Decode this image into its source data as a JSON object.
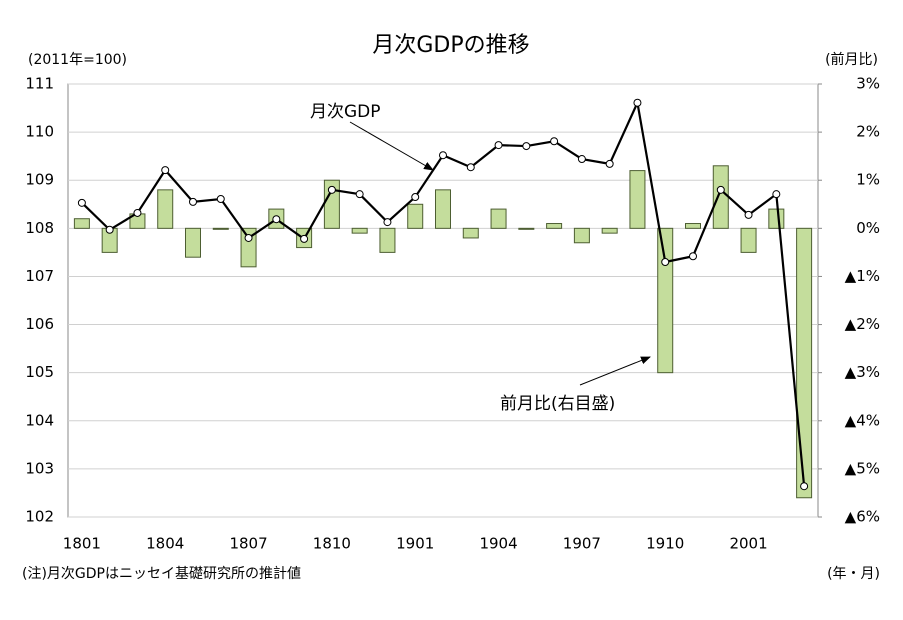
{
  "chart_data": {
    "type": "combo",
    "title": "月次GDPの推移",
    "y_label": "(2011年=100)",
    "y2_label": "(前月比)",
    "x_label": "(年・月)",
    "note": "(注)月次GDPはニッセイ基礎研究所の推計値",
    "categories": [
      "1801",
      null,
      null,
      "1804",
      null,
      null,
      "1807",
      null,
      null,
      "1810",
      null,
      null,
      "1901",
      null,
      null,
      "1904",
      null,
      null,
      "1907",
      null,
      null,
      "1910",
      null,
      null,
      "2001",
      null,
      null
    ],
    "ylim": [
      102,
      111
    ],
    "yticks": [
      102,
      103,
      104,
      105,
      106,
      107,
      108,
      109,
      110,
      111
    ],
    "y2lim": [
      -6,
      3
    ],
    "y2ticks": [
      {
        "value": 3,
        "label": "3%"
      },
      {
        "value": 2,
        "label": "2%"
      },
      {
        "value": 1,
        "label": "1%"
      },
      {
        "value": 0,
        "label": "0%"
      },
      {
        "value": -1,
        "label": "▲1%"
      },
      {
        "value": -2,
        "label": "▲2%"
      },
      {
        "value": -3,
        "label": "▲3%"
      },
      {
        "value": -4,
        "label": "▲4%"
      },
      {
        "value": -5,
        "label": "▲5%"
      },
      {
        "value": -6,
        "label": "▲6%"
      }
    ],
    "grid": true,
    "series": [
      {
        "name": "前月比(右目盛)",
        "type": "bar",
        "axis": "y2",
        "color": "#c4dd9c",
        "edge_color": "#4d5e32",
        "values": [
          0.2,
          -0.5,
          0.3,
          0.8,
          -0.6,
          0.0,
          -0.8,
          0.4,
          -0.4,
          1.0,
          -0.1,
          -0.5,
          0.5,
          0.8,
          -0.2,
          0.4,
          0.0,
          0.1,
          -0.3,
          -0.1,
          1.2,
          -3.0,
          0.1,
          1.3,
          -0.5,
          0.4,
          -5.6
        ]
      },
      {
        "name": "月次GDP",
        "type": "line",
        "axis": "y",
        "color": "#000000",
        "values": [
          108.53,
          107.97,
          108.32,
          109.21,
          108.55,
          108.61,
          107.8,
          108.19,
          107.78,
          108.8,
          108.71,
          108.13,
          108.65,
          109.52,
          109.27,
          109.73,
          109.71,
          109.81,
          109.44,
          109.34,
          110.61,
          107.3,
          107.42,
          108.8,
          108.28,
          108.71,
          102.64
        ]
      }
    ]
  }
}
